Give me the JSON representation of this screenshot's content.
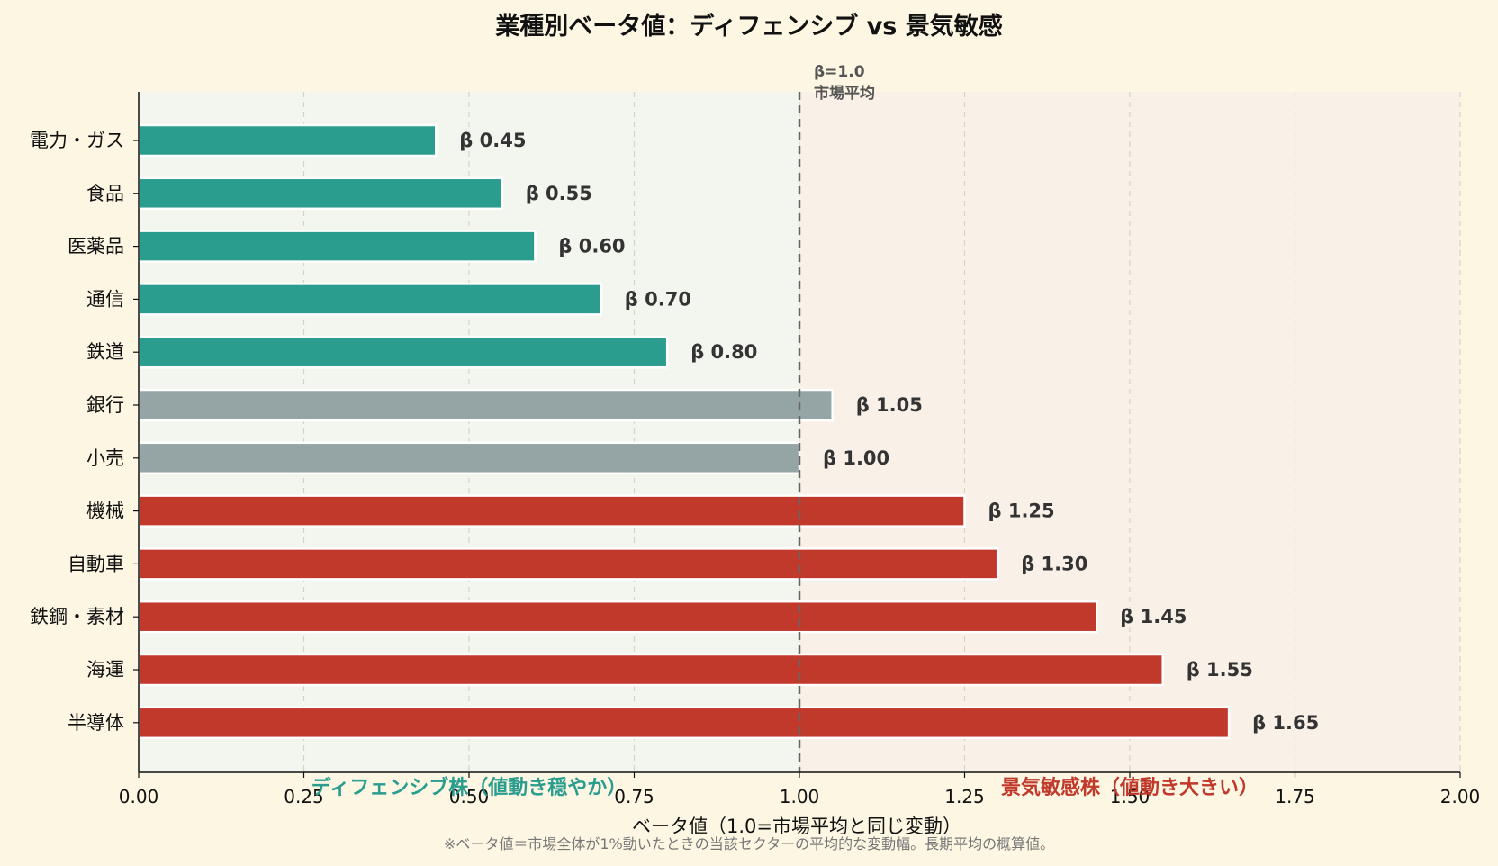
{
  "chart_data": {
    "type": "bar",
    "orientation": "horizontal",
    "title": "業種別ベータ値：ディフェンシブ vs 景気敏感",
    "xlabel": "ベータ値（1.0=市場平均と同じ変動）",
    "xlim": [
      0,
      2.0
    ],
    "xticks": [
      "0.00",
      "0.25",
      "0.50",
      "0.75",
      "1.00",
      "1.25",
      "1.50",
      "1.75",
      "2.00"
    ],
    "grid": "vertical dashed",
    "categories": [
      "電力・ガス",
      "食品",
      "医薬品",
      "通信",
      "鉄道",
      "銀行",
      "小売",
      "機械",
      "自動車",
      "鉄鋼・素材",
      "海運",
      "半導体"
    ],
    "values": [
      0.45,
      0.55,
      0.6,
      0.7,
      0.8,
      1.05,
      1.0,
      1.25,
      1.3,
      1.45,
      1.55,
      1.65
    ],
    "value_labels": [
      "β 0.45",
      "β 0.55",
      "β 0.60",
      "β 0.70",
      "β 0.80",
      "β 1.05",
      "β 1.00",
      "β 1.25",
      "β 1.30",
      "β 1.45",
      "β 1.55",
      "β 1.65"
    ],
    "groups": [
      "defensive",
      "defensive",
      "defensive",
      "defensive",
      "defensive",
      "neutral",
      "neutral",
      "cyclical",
      "cyclical",
      "cyclical",
      "cyclical",
      "cyclical"
    ],
    "reference_line": {
      "value": 1.0,
      "label_line1": "β=1.0",
      "label_line2": "市場平均"
    },
    "zone_labels": {
      "left": "ディフェンシブ株（値動き穏やか）",
      "right": "景気敏感株（値動き大きい）"
    },
    "footnote": "※ベータ値＝市場全体が1%動いたときの当該セクターの平均的な変動幅。長期平均の概算値。",
    "colors": {
      "defensive": "#2a9d8f",
      "neutral": "#95a5a6",
      "cyclical": "#c0392b",
      "left_zone_bg": "#f3f6ee",
      "right_zone_bg": "#f9f0e8",
      "page_bg": "#fdf6e3",
      "left_zone_text": "#2a9d8f",
      "right_zone_text": "#c0392b"
    }
  }
}
